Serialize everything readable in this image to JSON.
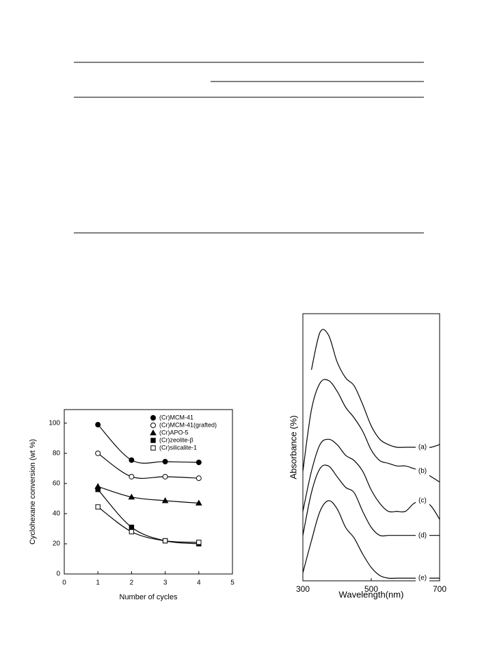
{
  "chart_data": [
    {
      "type": "line",
      "xlabel": "Number of cycles",
      "ylabel": "Cyclohexane conversion (wt %)",
      "x": [
        1,
        2,
        3,
        4
      ],
      "xlim": [
        0,
        5
      ],
      "xticks": [
        0,
        1,
        2,
        3,
        4,
        5
      ],
      "ylim": [
        0,
        109
      ],
      "yticks": [
        0,
        20,
        40,
        60,
        80,
        100
      ],
      "smooth": true,
      "legend": "upper right",
      "series": [
        {
          "name": "(Cr)MCM-41",
          "color": "#000000",
          "marker": "circle-filled",
          "values": [
            99,
            75.5,
            74.5,
            74
          ]
        },
        {
          "name": "(Cr)MCM-41(grafted)",
          "color": "#000000",
          "marker": "circle-open",
          "values": [
            80,
            64.5,
            64.5,
            63.5
          ]
        },
        {
          "name": "(Cr)APO-5",
          "color": "#000000",
          "marker": "triangle-filled",
          "values": [
            58,
            51,
            48.6,
            47
          ]
        },
        {
          "name": "(Cr)zeolite-β",
          "color": "#000000",
          "marker": "square-filled",
          "values": [
            56,
            31,
            22,
            20
          ]
        },
        {
          "name": "(Cr)silicalite-1",
          "color": "#000000",
          "marker": "square-open",
          "values": [
            44.5,
            28,
            22,
            21
          ]
        }
      ]
    },
    {
      "type": "line",
      "xlabel": "Wavelength(nm)",
      "ylabel": "Absorbance (%)",
      "x": [
        300,
        325,
        350,
        375,
        400,
        425,
        450,
        475,
        500,
        525,
        550,
        575,
        600,
        625,
        650,
        675,
        700
      ],
      "xlim": [
        300,
        700
      ],
      "xticks": [
        300,
        500,
        700
      ],
      "ylim": [
        0,
        100
      ],
      "smooth": true,
      "legend": "inline",
      "series": [
        {
          "name": "(a)",
          "color": "#000000",
          "values": [
            null,
            79,
            93,
            92,
            82,
            76,
            73,
            66,
            58,
            53,
            51,
            50,
            50,
            50,
            50,
            50,
            51
          ]
        },
        {
          "name": "(b)",
          "color": "#000000",
          "values": [
            41,
            64,
            74,
            75,
            71,
            65,
            61,
            56,
            49,
            45,
            44,
            43,
            43,
            42,
            41,
            39,
            37
          ]
        },
        {
          "name": "(c)",
          "color": "#000000",
          "values": [
            26,
            41,
            51,
            53,
            51,
            47,
            45,
            41,
            34,
            29,
            26,
            26,
            26,
            29,
            30,
            28,
            23
          ]
        },
        {
          "name": "(d)",
          "color": "#000000",
          "values": [
            17,
            33,
            42,
            43,
            39,
            35,
            33,
            26,
            20,
            17,
            17,
            17,
            17,
            17,
            17,
            17,
            17
          ]
        },
        {
          "name": "(e)",
          "color": "#000000",
          "values": [
            3,
            15,
            26,
            30,
            27,
            20,
            16,
            10,
            5,
            2,
            1,
            1,
            1,
            1,
            1,
            1,
            1
          ]
        }
      ]
    }
  ]
}
